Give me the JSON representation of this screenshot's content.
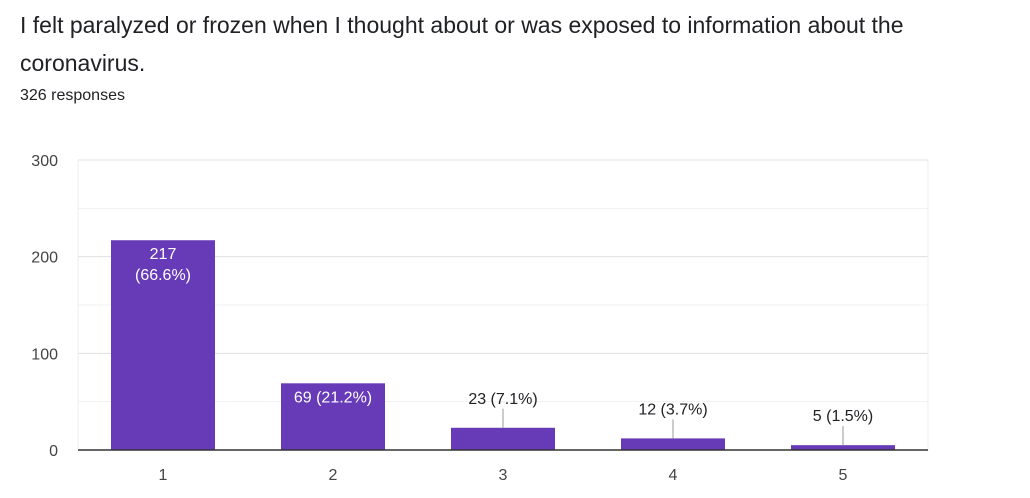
{
  "question": "I felt paralyzed or frozen when I thought about or was exposed to information about the coronavirus.",
  "responses_text": "326 responses",
  "colors": {
    "bar": "#673ab7",
    "grid": "#e0e0e0",
    "axis": "#333333",
    "label_outside": "#202124",
    "label_inside": "#ffffff"
  },
  "chart_data": {
    "type": "bar",
    "categories": [
      "1",
      "2",
      "3",
      "4",
      "5"
    ],
    "values": [
      217,
      69,
      23,
      12,
      5
    ],
    "data_labels": [
      "217 (66.6%)",
      "69 (21.2%)",
      "23 (7.1%)",
      "12 (3.7%)",
      "5 (1.5%)"
    ],
    "label_lines": [
      [
        "217",
        "(66.6%)"
      ],
      [
        "69 (21.2%)"
      ],
      [
        "23 (7.1%)"
      ],
      [
        "12 (3.7%)"
      ],
      [
        "5 (1.5%)"
      ]
    ],
    "label_inside": [
      true,
      true,
      false,
      false,
      false
    ],
    "yticks": [
      0,
      100,
      200,
      300
    ],
    "ylim": [
      0,
      300
    ],
    "grid": true,
    "title": "",
    "xlabel": "",
    "ylabel": ""
  }
}
